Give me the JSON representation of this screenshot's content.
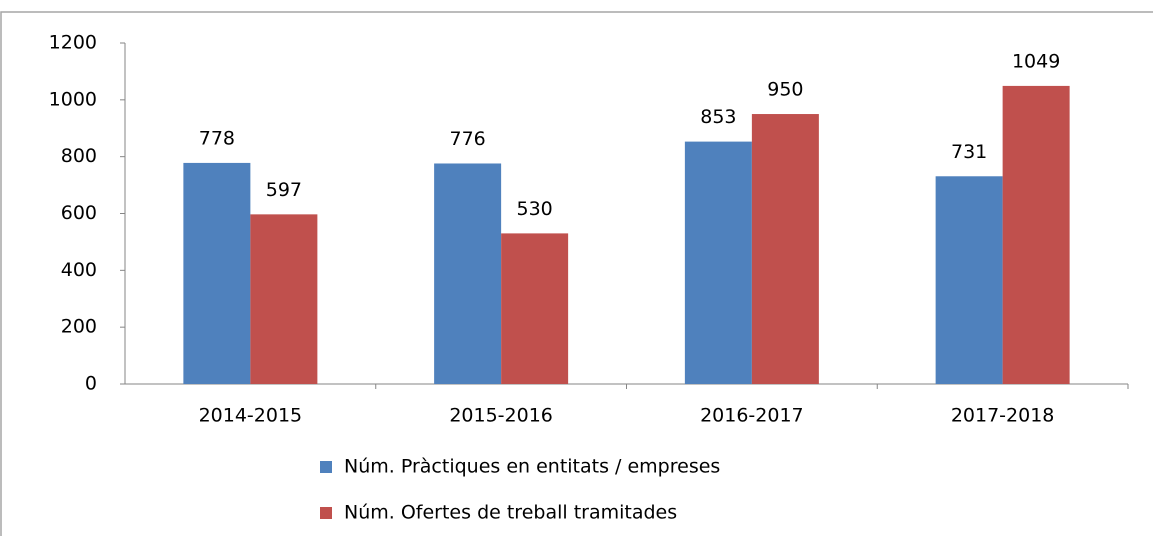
{
  "chart_data": {
    "type": "bar",
    "categories": [
      "2014-2015",
      "2015-2016",
      "2016-2017",
      "2017-2018"
    ],
    "series": [
      {
        "name": "Núm. Pràctiques en entitats / empreses",
        "color": "#4f81bd",
        "values": [
          778,
          776,
          853,
          731
        ]
      },
      {
        "name": "Núm. Ofertes de treball tramitades",
        "color": "#c0504d",
        "values": [
          597,
          530,
          950,
          1049
        ]
      }
    ],
    "ylim": [
      0,
      1200
    ],
    "yticks": [
      0,
      200,
      400,
      600,
      800,
      1000,
      1200
    ],
    "grid": false,
    "legend": "bottom",
    "data_labels": true
  }
}
